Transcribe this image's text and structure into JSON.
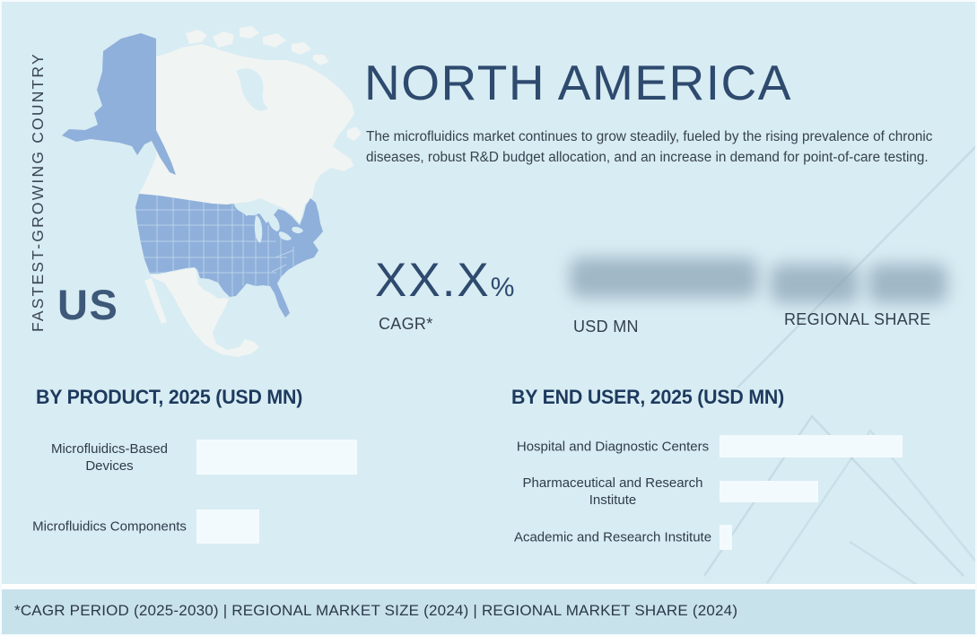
{
  "page": {
    "vertical_label": "FASTEST-GROWING COUNTRY",
    "country": "US",
    "title": "NORTH AMERICA",
    "description": "The microfluidics market continues to grow steadily, fueled by the rising prevalence of chronic diseases, robust R&D budget allocation, and an increase in demand for point-of-care testing."
  },
  "map": {
    "name": "north-america-map",
    "highlighted_country": "US",
    "highlight_color": "#8fb0da",
    "other_country_color": "#f0f4f3"
  },
  "stats": [
    {
      "value_main": "XX.X",
      "value_suffix": "%",
      "label": "CAGR*",
      "redacted": false
    },
    {
      "value_main": "",
      "value_suffix": "",
      "label": "USD MN",
      "redacted": true
    },
    {
      "value_main": "",
      "value_suffix": "",
      "label": "REGIONAL SHARE",
      "redacted": true
    }
  ],
  "chart_data": [
    {
      "type": "bar",
      "orientation": "horizontal",
      "title": "BY PRODUCT, 2025 (USD MN)",
      "categories": [
        "Microfluidics-Based Devices",
        "Microfluidics Components"
      ],
      "values_relative_pct": [
        100,
        39
      ],
      "values_hidden": true,
      "bar_color": "#f3fafd",
      "legend": "none",
      "grid": "off"
    },
    {
      "type": "bar",
      "orientation": "horizontal",
      "title": "BY END USER, 2025 (USD MN)",
      "categories": [
        "Hospital and Diagnostic Centers",
        "Pharmaceutical and Research Institute",
        "Academic and Research Institute"
      ],
      "values_relative_pct": [
        100,
        54,
        7
      ],
      "values_hidden": true,
      "bar_color": "#f3fafd",
      "legend": "none",
      "grid": "off"
    }
  ],
  "footer": {
    "text": "*CAGR PERIOD (2025-2030)  |  REGIONAL MARKET SIZE (2024)  |  REGIONAL MARKET SHARE (2024)"
  },
  "colors": {
    "background": "#d8ecf3",
    "footer_background": "#c8e2ec",
    "accent_navy": "#2e4a6e",
    "map_us_blue": "#8fb0da",
    "map_other": "#f0f4f3",
    "bar_fill": "#f3fafd",
    "redaction_blob": "#8ba3b5"
  }
}
